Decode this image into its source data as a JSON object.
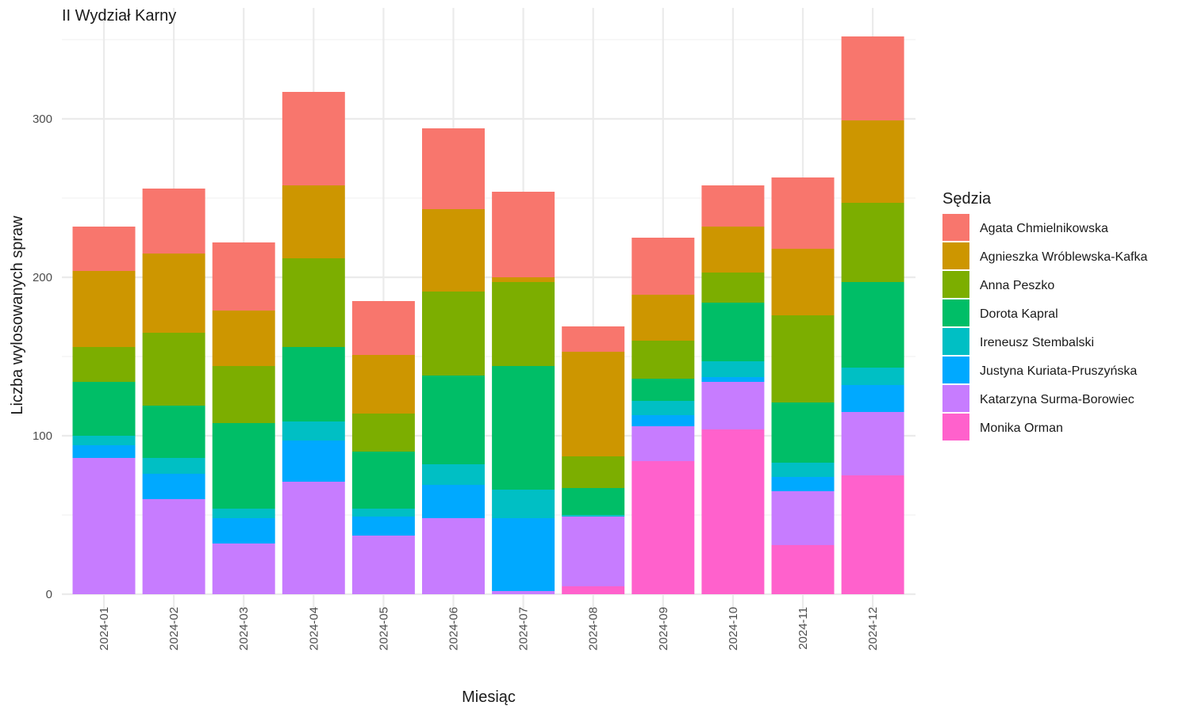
{
  "chart_data": {
    "type": "bar",
    "stacked": true,
    "title": "II Wydział Karny",
    "xlabel": "Miesiąc",
    "ylabel": "Liczba wylosowanych spraw",
    "ylim": [
      0,
      360
    ],
    "yticks": [
      0,
      100,
      200,
      300
    ],
    "grid": true,
    "legend_title": "Sędzia",
    "legend_position": "right",
    "categories": [
      "2024-01",
      "2024-02",
      "2024-03",
      "2024-04",
      "2024-05",
      "2024-06",
      "2024-07",
      "2024-08",
      "2024-09",
      "2024-10",
      "2024-11",
      "2024-12"
    ],
    "series": [
      {
        "name": "Agata Chmielnikowska",
        "color": "#F8766D",
        "values": [
          28,
          41,
          43,
          59,
          34,
          51,
          54,
          16,
          36,
          26,
          45,
          53
        ]
      },
      {
        "name": "Agnieszka Wróblewska-Kafka",
        "color": "#CD9600",
        "values": [
          48,
          50,
          35,
          46,
          37,
          52,
          3,
          66,
          29,
          29,
          42,
          52
        ]
      },
      {
        "name": "Anna Peszko",
        "color": "#7CAE00",
        "values": [
          22,
          46,
          36,
          56,
          24,
          53,
          53,
          20,
          24,
          19,
          55,
          50
        ]
      },
      {
        "name": "Dorota Kapral",
        "color": "#00BE67",
        "values": [
          34,
          33,
          54,
          47,
          36,
          56,
          78,
          17,
          14,
          37,
          38,
          54
        ]
      },
      {
        "name": "Ireneusz Stembalski",
        "color": "#00BFC4",
        "values": [
          6,
          10,
          6,
          12,
          5,
          13,
          18,
          1,
          9,
          10,
          9,
          11
        ]
      },
      {
        "name": "Justyna Kuriata-Pruszyńska",
        "color": "#00A9FF",
        "values": [
          8,
          16,
          16,
          26,
          12,
          21,
          46,
          0,
          7,
          3,
          9,
          17
        ]
      },
      {
        "name": "Katarzyna Surma-Borowiec",
        "color": "#C77CFF",
        "values": [
          86,
          60,
          32,
          71,
          37,
          48,
          2,
          44,
          22,
          30,
          34,
          40
        ]
      },
      {
        "name": "Monika Orman",
        "color": "#FF61CC",
        "values": [
          0,
          0,
          0,
          0,
          0,
          0,
          0,
          5,
          84,
          104,
          31,
          75
        ]
      }
    ]
  }
}
